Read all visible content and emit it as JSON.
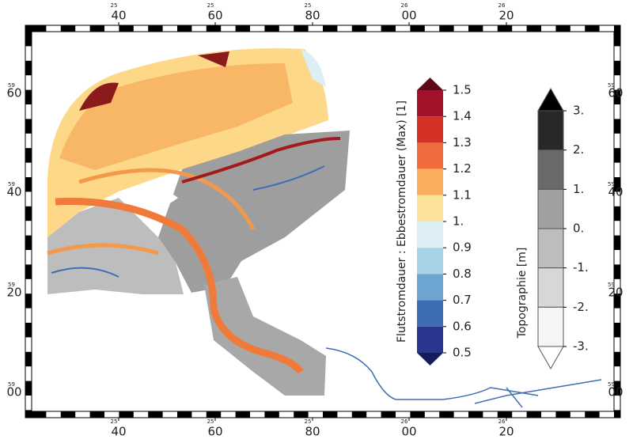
{
  "x_axis": [
    {
      "major": "40",
      "minor": "25"
    },
    {
      "major": "60",
      "minor": "25"
    },
    {
      "major": "80",
      "minor": "25"
    },
    {
      "major": "00",
      "minor": "26"
    },
    {
      "major": "20",
      "minor": "26"
    }
  ],
  "y_axis": [
    {
      "major": "60",
      "minor": "59"
    },
    {
      "major": "40",
      "minor": "59"
    },
    {
      "major": "20",
      "minor": "59"
    },
    {
      "major": "00",
      "minor": "59"
    }
  ],
  "colorbars": [
    {
      "title": "Flutstromdauer : Ebbestromdauer (Max) [1]",
      "ticks": [
        "1.5",
        "1.4",
        "1.3",
        "1.2",
        "1.1",
        "1.",
        "0.9",
        "0.8",
        "0.7",
        "0.6",
        "0.5"
      ],
      "colors": [
        "#a3112a",
        "#d43127",
        "#f06c3e",
        "#fbae5e",
        "#fde39a",
        "#ddeff5",
        "#a8d3e6",
        "#6ea5d0",
        "#3f6db3",
        "#2a3590"
      ],
      "over_color": "#5a0a1a",
      "under_color": "#141c5a"
    },
    {
      "title": "Topographie [m]",
      "ticks": [
        "3.",
        "2.",
        "1.",
        "0.",
        "-1.",
        "-2.",
        "-3."
      ],
      "colors": [
        "#282828",
        "#6a6a6a",
        "#a0a0a0",
        "#bdbdbd",
        "#d7d7d7",
        "#f5f5f5"
      ],
      "over_color": "#000000",
      "under_color": "#ffffff"
    }
  ]
}
